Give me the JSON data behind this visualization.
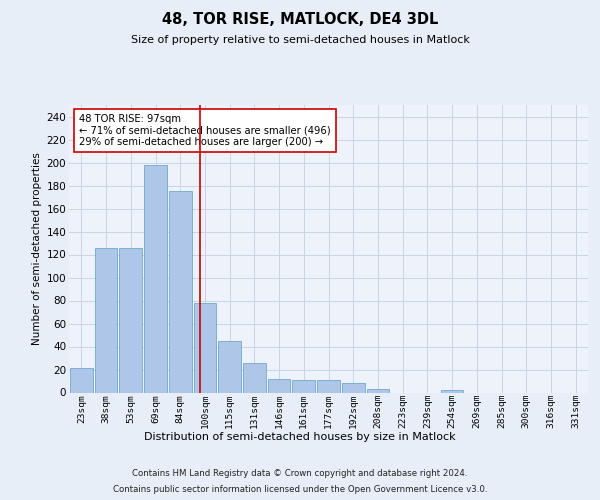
{
  "title": "48, TOR RISE, MATLOCK, DE4 3DL",
  "subtitle": "Size of property relative to semi-detached houses in Matlock",
  "xlabel": "Distribution of semi-detached houses by size in Matlock",
  "ylabel": "Number of semi-detached properties",
  "footer1": "Contains HM Land Registry data © Crown copyright and database right 2024.",
  "footer2": "Contains public sector information licensed under the Open Government Licence v3.0.",
  "annotation_line1": "48 TOR RISE: 97sqm",
  "annotation_line2": "← 71% of semi-detached houses are smaller (496)",
  "annotation_line3": "29% of semi-detached houses are larger (200) →",
  "categories": [
    "23sqm",
    "38sqm",
    "53sqm",
    "69sqm",
    "84sqm",
    "100sqm",
    "115sqm",
    "131sqm",
    "146sqm",
    "161sqm",
    "177sqm",
    "192sqm",
    "208sqm",
    "223sqm",
    "239sqm",
    "254sqm",
    "269sqm",
    "285sqm",
    "300sqm",
    "316sqm",
    "331sqm"
  ],
  "values": [
    21,
    126,
    126,
    198,
    175,
    78,
    45,
    26,
    12,
    11,
    11,
    8,
    3,
    0,
    0,
    2,
    0,
    0,
    0,
    0,
    0
  ],
  "bar_color": "#aec6e8",
  "bar_edge_color": "#6fa8d0",
  "vline_color": "#cc0000",
  "annotation_box_edge": "#cc0000",
  "annotation_box_face": "#ffffff",
  "grid_color": "#c8d4e8",
  "background_color": "#e8eef8",
  "plot_bg_color": "#eef2fa",
  "ylim": [
    0,
    250
  ],
  "yticks": [
    0,
    20,
    40,
    60,
    80,
    100,
    120,
    140,
    160,
    180,
    200,
    220,
    240
  ],
  "vline_x": 4.82
}
